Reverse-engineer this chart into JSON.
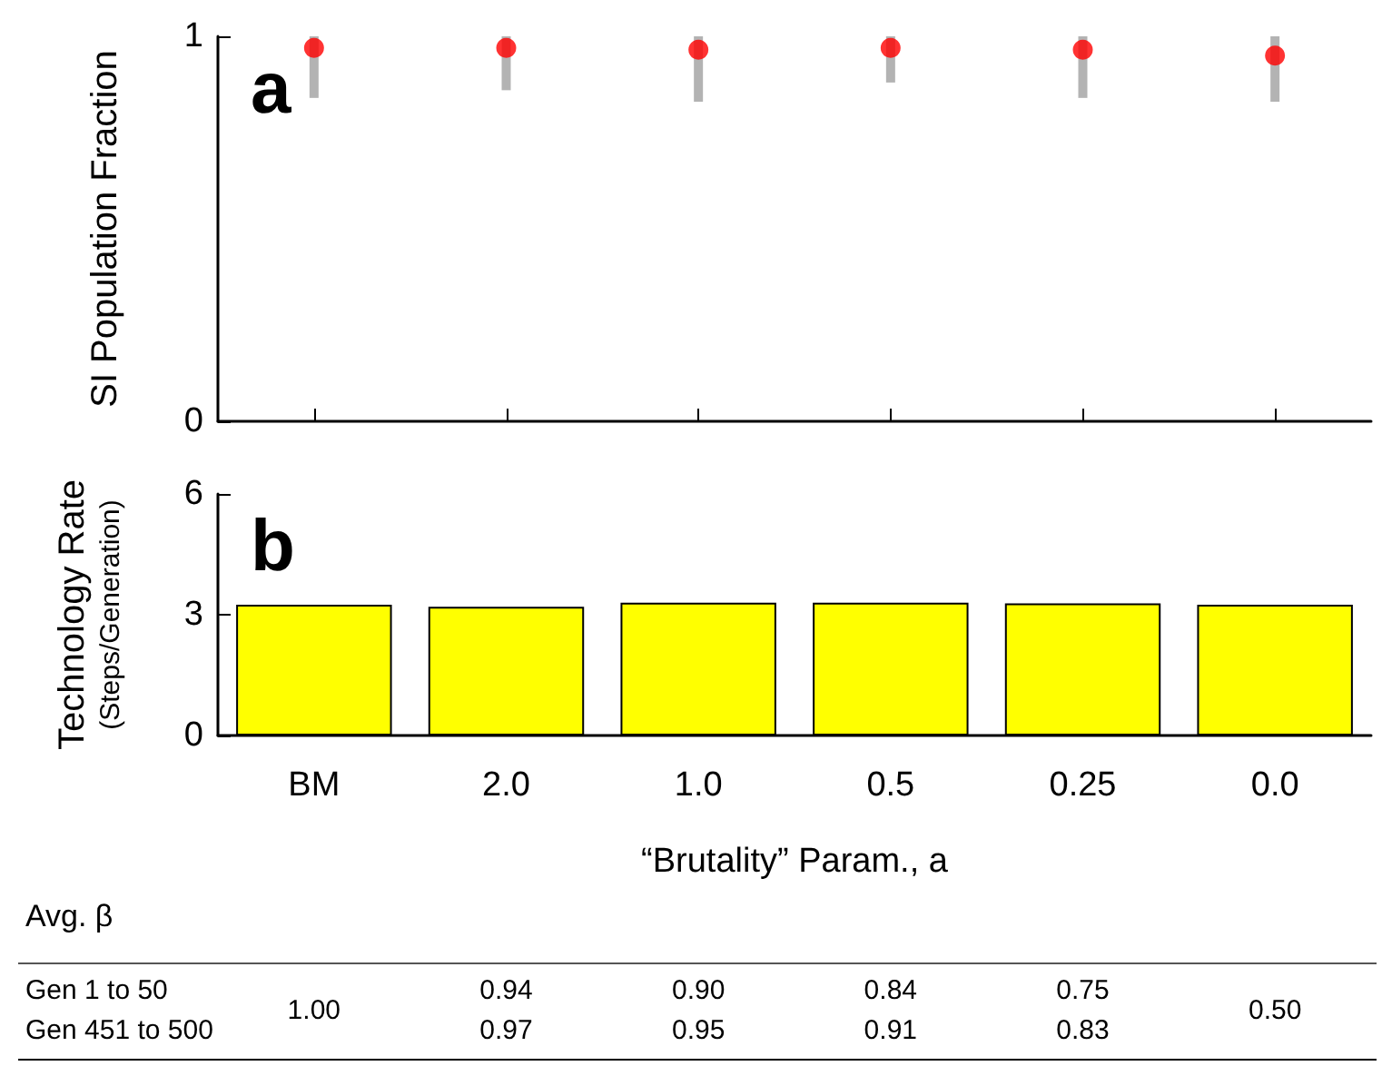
{
  "chart_data": [
    {
      "type": "scatter",
      "title": "a",
      "ylabel": "SI Population Fraction",
      "categories": [
        null,
        null,
        null,
        null,
        null,
        null
      ],
      "series": [
        {
          "color": "#ff0000",
          "values": [
            0.97,
            0.97,
            0.965,
            0.97,
            0.965,
            0.95
          ],
          "errors": [
            [
              0.84,
              1.0
            ],
            [
              0.86,
              1.0
            ],
            [
              0.83,
              1.0
            ],
            [
              0.88,
              1.0
            ],
            [
              0.84,
              1.0
            ],
            [
              0.83,
              1.0
            ]
          ]
        }
      ],
      "ylim": [
        0,
        1
      ],
      "yticks": [
        0,
        1
      ],
      "tick_labels": "y",
      "marker": "circle"
    },
    {
      "type": "bar",
      "title": "b",
      "ylabel": "Technology Rate\n(Steps/Generation)",
      "xlabel": "“Brutality” Param., a",
      "categories": [
        "BM",
        "2.0",
        "1.0",
        "0.5",
        "0.25",
        "0.0"
      ],
      "series": [
        {
          "color": "#ffff00",
          "values": [
            3.25,
            3.2,
            3.3,
            3.3,
            3.28,
            3.25
          ]
        }
      ],
      "ylim": [
        0,
        6
      ],
      "yticks": [
        0,
        3,
        6
      ],
      "annotations": [
        "Avg. β",
        "Gen 1 to 50",
        "Gen 451 to 500",
        "1.00",
        "0.94\n0.97",
        "0.90\n0.95",
        "0.84\n0.91",
        "0.75\n0.83",
        "0.50"
      ]
    }
  ]
}
